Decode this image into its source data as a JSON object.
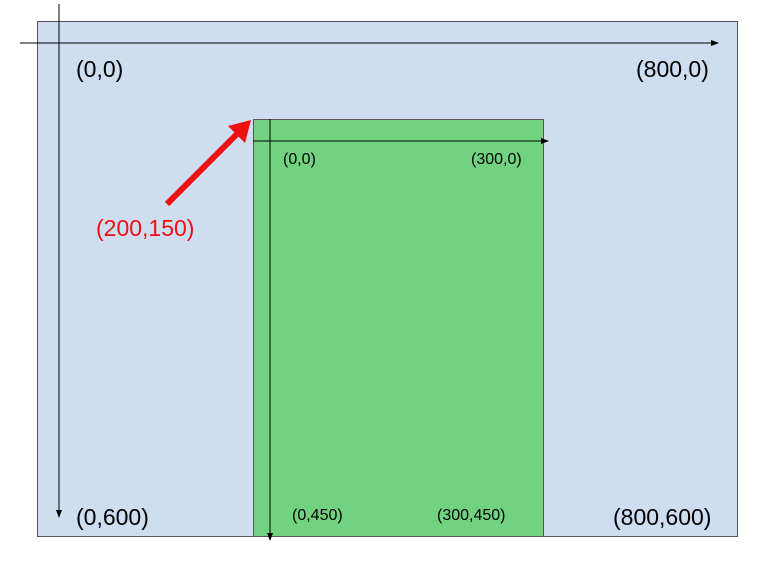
{
  "outer_frame": {
    "top_left": "(0,0)",
    "top_right": "(800,0)",
    "bottom_left": "(0,600)",
    "bottom_right": "(800,600)"
  },
  "inner_frame": {
    "top_left": "(0,0)",
    "top_right": "(300,0)",
    "bottom_left": "(0,450)",
    "bottom_right": "(300,450)"
  },
  "offset_label": "(200,150)",
  "colors": {
    "outer_fill": "#cfddf1",
    "inner_fill": "#71d37f",
    "offset_arrow": "#ee1111",
    "axis_line": "#000000"
  }
}
